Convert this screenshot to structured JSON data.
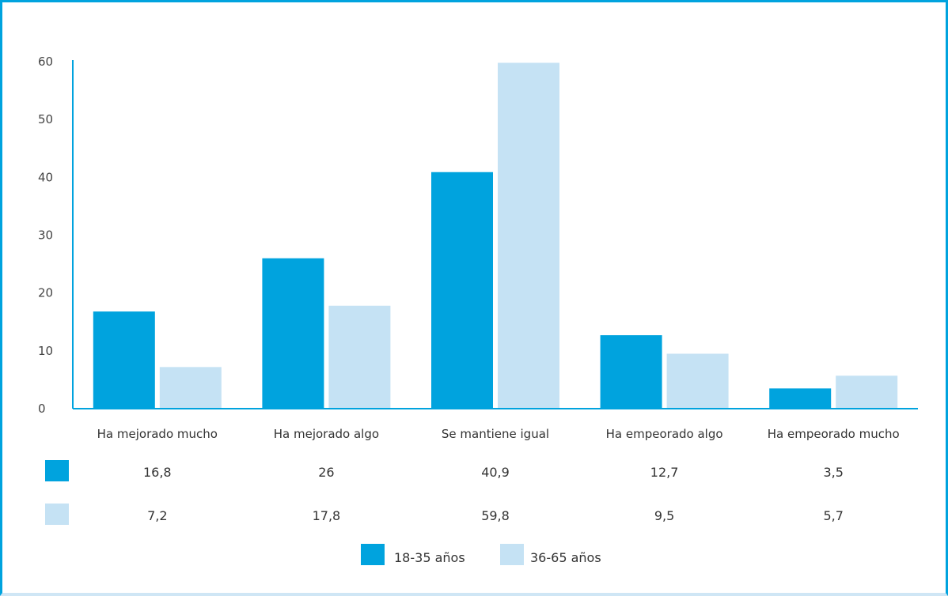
{
  "chart_data": {
    "type": "bar",
    "categories": [
      "Ha mejorado mucho",
      "Ha mejorado algo",
      "Se mantiene igual",
      "Ha empeorado algo",
      "Ha empeorado mucho"
    ],
    "series": [
      {
        "name": "18-35 años",
        "values": [
          16.8,
          26,
          40.9,
          12.7,
          3.5
        ],
        "labels": [
          "16,8",
          "26",
          "40,9",
          "12,7",
          "3,5"
        ],
        "color": "#00a3de"
      },
      {
        "name": "36-65 años",
        "values": [
          7.2,
          17.8,
          59.8,
          9.5,
          5.7
        ],
        "labels": [
          "7,2",
          "17,8",
          "59,8",
          "9,5",
          "5,7"
        ],
        "color": "#c5e2f4"
      }
    ],
    "yticks": [
      "0",
      "10",
      "20",
      "30",
      "40",
      "50",
      "60"
    ],
    "ylim": [
      0,
      60
    ],
    "grid": false,
    "legend": "bottom",
    "data_table": true
  },
  "colors": {
    "frame": "#00a3de",
    "axis": "#00a3de",
    "series1": "#00a3de",
    "series2": "#c5e2f4"
  }
}
